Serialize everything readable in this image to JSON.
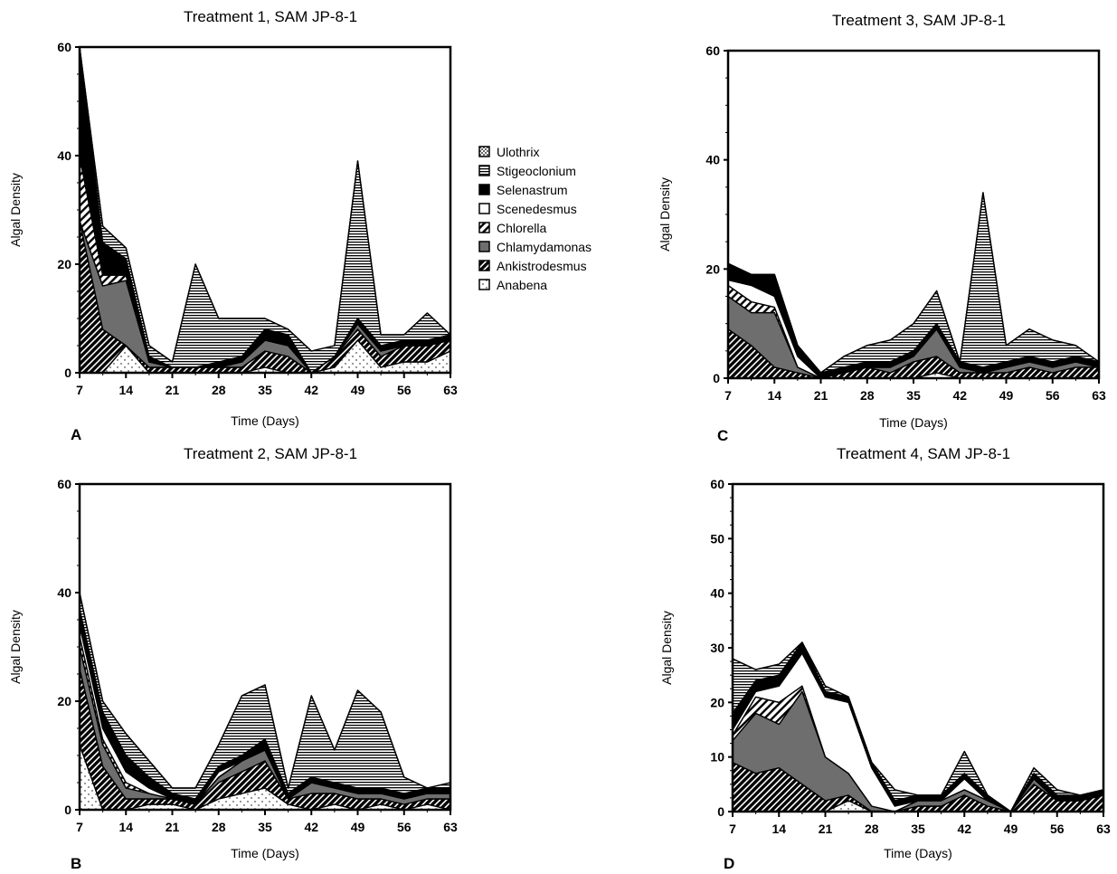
{
  "legend": {
    "placement": "center-top, between panels A and C",
    "items": [
      {
        "name": "Ulothrix",
        "pattern": "dots"
      },
      {
        "name": "Stigeoclonium",
        "pattern": "hlines"
      },
      {
        "name": "Selenastrum",
        "pattern": "black"
      },
      {
        "name": "Scenedesmus",
        "pattern": "white"
      },
      {
        "name": "Chlorella",
        "pattern": "hatch"
      },
      {
        "name": "Chlamydamonas",
        "pattern": "gray"
      },
      {
        "name": "Ankistrodesmus",
        "pattern": "darkhatch"
      },
      {
        "name": "Anabena",
        "pattern": "speckle"
      }
    ]
  },
  "chart_data": [
    {
      "type": "area",
      "panel_letter": "A",
      "title": "Treatment 1, SAM JP-8-1",
      "xlabel": "Time (Days)",
      "ylabel": "Algal Density",
      "xlim": [
        7,
        63
      ],
      "ylim": [
        0,
        60
      ],
      "xticks": [
        7,
        14,
        21,
        28,
        35,
        42,
        49,
        56,
        63
      ],
      "yticks": [
        0,
        20,
        40,
        60
      ],
      "grid": false,
      "x": [
        7,
        10.5,
        14,
        17.5,
        21,
        24.5,
        28,
        31.5,
        35,
        38.5,
        42,
        45.5,
        49,
        52.5,
        56,
        59.5,
        63
      ],
      "series": [
        {
          "name": "Anabena",
          "values": [
            0,
            0,
            5,
            0,
            0,
            0,
            0,
            0,
            1,
            0,
            0,
            1,
            6,
            1,
            2,
            2,
            4
          ]
        },
        {
          "name": "Ankistrodesmus",
          "values": [
            28,
            8,
            0,
            1,
            1,
            1,
            1,
            1,
            3,
            3,
            0,
            2,
            2,
            2,
            3,
            3,
            2
          ]
        },
        {
          "name": "Chlamydamonas",
          "values": [
            0,
            8,
            12,
            1,
            0,
            0,
            0,
            1,
            2,
            2,
            0,
            0,
            1,
            1,
            0,
            0,
            0
          ]
        },
        {
          "name": "Chlorella",
          "values": [
            12,
            2,
            1,
            0,
            0,
            0,
            0,
            0,
            0,
            0,
            0,
            0,
            0,
            0,
            0,
            0,
            0
          ]
        },
        {
          "name": "Scenedesmus",
          "values": [
            0,
            0,
            0,
            0,
            0,
            0,
            0,
            0,
            0,
            0,
            0,
            0,
            0,
            0,
            0,
            0,
            0
          ]
        },
        {
          "name": "Selenastrum",
          "values": [
            20,
            6,
            3,
            1,
            0,
            0,
            1,
            1,
            2,
            2,
            0,
            0,
            1,
            1,
            1,
            1,
            1
          ]
        },
        {
          "name": "Stigeoclonium",
          "values": [
            0,
            3,
            2,
            2,
            1,
            19,
            8,
            7,
            2,
            1,
            4,
            2,
            29,
            2,
            1,
            5,
            0
          ]
        },
        {
          "name": "Ulothrix",
          "values": [
            0,
            0,
            0,
            0,
            0,
            0,
            0,
            0,
            0,
            0,
            0,
            0,
            0,
            0,
            0,
            0,
            0
          ]
        }
      ]
    },
    {
      "type": "area",
      "panel_letter": "B",
      "title": "Treatment 2, SAM JP-8-1",
      "xlabel": "Time (Days)",
      "ylabel": "Algal Density",
      "xlim": [
        7,
        63
      ],
      "ylim": [
        0,
        60
      ],
      "xticks": [
        7,
        14,
        21,
        28,
        35,
        42,
        49,
        56,
        63
      ],
      "yticks": [
        0,
        20,
        40,
        60
      ],
      "grid": false,
      "x": [
        7,
        10.5,
        14,
        17.5,
        21,
        24.5,
        28,
        31.5,
        35,
        38.5,
        42,
        45.5,
        49,
        52.5,
        56,
        59.5,
        63
      ],
      "series": [
        {
          "name": "Anabena",
          "values": [
            12,
            0,
            0,
            1,
            1,
            0,
            2,
            3,
            4,
            1,
            0,
            1,
            0,
            1,
            0,
            1,
            0
          ]
        },
        {
          "name": "Ankistrodesmus",
          "values": [
            14,
            8,
            2,
            1,
            1,
            1,
            3,
            4,
            5,
            1,
            3,
            2,
            2,
            1,
            1,
            1,
            2
          ]
        },
        {
          "name": "Chlamydamonas",
          "values": [
            4,
            4,
            2,
            1,
            0,
            0,
            1,
            2,
            2,
            0,
            2,
            1,
            1,
            1,
            1,
            1,
            1
          ]
        },
        {
          "name": "Chlorella",
          "values": [
            2,
            1,
            1,
            0,
            0,
            0,
            0,
            0,
            0,
            0,
            0,
            0,
            0,
            0,
            0,
            0,
            0
          ]
        },
        {
          "name": "Scenedesmus",
          "values": [
            2,
            2,
            2,
            1,
            0,
            0,
            1,
            0,
            0,
            0,
            0,
            0,
            0,
            0,
            0,
            0,
            0
          ]
        },
        {
          "name": "Selenastrum",
          "values": [
            3,
            3,
            3,
            2,
            1,
            1,
            1,
            1,
            2,
            1,
            1,
            1,
            1,
            1,
            1,
            1,
            1
          ]
        },
        {
          "name": "Stigeoclonium",
          "values": [
            3,
            2,
            4,
            3,
            1,
            2,
            4,
            11,
            10,
            1,
            15,
            6,
            18,
            14,
            3,
            0,
            1
          ]
        },
        {
          "name": "Ulothrix",
          "values": [
            0,
            0,
            0,
            0,
            0,
            0,
            0,
            0,
            0,
            0,
            0,
            0,
            0,
            0,
            0,
            0,
            0
          ]
        }
      ]
    },
    {
      "type": "area",
      "panel_letter": "C",
      "title": "Treatment 3, SAM JP-8-1",
      "xlabel": "Time (Days)",
      "ylabel": "Algal Density",
      "xlim": [
        7,
        63
      ],
      "ylim": [
        0,
        60
      ],
      "xticks": [
        7,
        14,
        21,
        28,
        35,
        42,
        49,
        56,
        63
      ],
      "yticks": [
        0,
        20,
        40,
        60
      ],
      "grid": false,
      "x": [
        7,
        10.5,
        14,
        17.5,
        21,
        24.5,
        28,
        31.5,
        35,
        38.5,
        42,
        45.5,
        49,
        52.5,
        56,
        59.5,
        63
      ],
      "series": [
        {
          "name": "Anabena",
          "values": [
            0,
            0,
            0,
            0,
            0,
            0,
            0,
            0,
            0,
            1,
            0,
            0,
            0,
            0,
            0,
            0,
            0
          ]
        },
        {
          "name": "Ankistrodesmus",
          "values": [
            9,
            6,
            2,
            1,
            0,
            1,
            2,
            1,
            3,
            3,
            1,
            1,
            1,
            2,
            1,
            2,
            2
          ]
        },
        {
          "name": "Chlamydamonas",
          "values": [
            6,
            6,
            10,
            1,
            0,
            0,
            0,
            1,
            1,
            5,
            1,
            0,
            1,
            1,
            1,
            1,
            0
          ]
        },
        {
          "name": "Chlorella",
          "values": [
            2,
            2,
            1,
            0,
            0,
            0,
            0,
            0,
            0,
            0,
            0,
            0,
            0,
            0,
            0,
            0,
            0
          ]
        },
        {
          "name": "Scenedesmus",
          "values": [
            1,
            3,
            2,
            2,
            0,
            0,
            0,
            0,
            0,
            0,
            0,
            0,
            0,
            0,
            0,
            0,
            0
          ]
        },
        {
          "name": "Selenastrum",
          "values": [
            3,
            2,
            4,
            2,
            1,
            1,
            1,
            1,
            1,
            1,
            1,
            1,
            1,
            1,
            1,
            1,
            1
          ]
        },
        {
          "name": "Stigeoclonium",
          "values": [
            0,
            0,
            0,
            0,
            0,
            2,
            3,
            4,
            5,
            6,
            0,
            32,
            3,
            5,
            4,
            2,
            0
          ]
        },
        {
          "name": "Ulothrix",
          "values": [
            0,
            0,
            0,
            0,
            0,
            0,
            0,
            0,
            0,
            0,
            0,
            0,
            0,
            0,
            0,
            0,
            0
          ]
        }
      ]
    },
    {
      "type": "area",
      "panel_letter": "D",
      "title": "Treatment 4, SAM JP-8-1",
      "xlabel": "Time (Days)",
      "ylabel": "Algal Density",
      "xlim": [
        7,
        63
      ],
      "ylim": [
        0,
        60
      ],
      "xticks": [
        7,
        14,
        21,
        28,
        35,
        42,
        49,
        56,
        63
      ],
      "yticks": [
        0,
        10,
        20,
        30,
        40,
        50,
        60
      ],
      "grid": false,
      "x": [
        7,
        10.5,
        14,
        17.5,
        21,
        24.5,
        28,
        31.5,
        35,
        38.5,
        42,
        45.5,
        49,
        52.5,
        56,
        59.5,
        63
      ],
      "series": [
        {
          "name": "Anabena",
          "values": [
            0,
            0,
            0,
            0,
            0,
            2,
            0,
            0,
            0,
            0,
            0,
            0,
            0,
            0,
            0,
            0,
            0
          ]
        },
        {
          "name": "Ankistrodesmus",
          "values": [
            9,
            7,
            8,
            5,
            2,
            1,
            0,
            0,
            1,
            1,
            3,
            1,
            0,
            5,
            2,
            2,
            3
          ]
        },
        {
          "name": "Chlamydamonas",
          "values": [
            4,
            11,
            8,
            17,
            8,
            4,
            1,
            0,
            1,
            1,
            1,
            1,
            0,
            1,
            0,
            0,
            0
          ]
        },
        {
          "name": "Chlorella",
          "values": [
            1,
            3,
            4,
            1,
            0,
            0,
            0,
            0,
            0,
            0,
            0,
            0,
            0,
            0,
            0,
            0,
            0
          ]
        },
        {
          "name": "Scenedesmus",
          "values": [
            1,
            1,
            3,
            6,
            11,
            13,
            7,
            1,
            0,
            0,
            2,
            0,
            0,
            0,
            0,
            0,
            0
          ]
        },
        {
          "name": "Selenastrum",
          "values": [
            3,
            2,
            2,
            2,
            1,
            1,
            1,
            1,
            1,
            1,
            1,
            1,
            0,
            1,
            1,
            1,
            1
          ]
        },
        {
          "name": "Stigeoclonium",
          "values": [
            10,
            2,
            2,
            0,
            1,
            0,
            0,
            2,
            0,
            0,
            4,
            0,
            0,
            1,
            1,
            0,
            0
          ]
        },
        {
          "name": "Ulothrix",
          "values": [
            0,
            0,
            0,
            0,
            0,
            0,
            0,
            0,
            0,
            0,
            0,
            0,
            0,
            0,
            0,
            0,
            0
          ]
        }
      ]
    }
  ]
}
